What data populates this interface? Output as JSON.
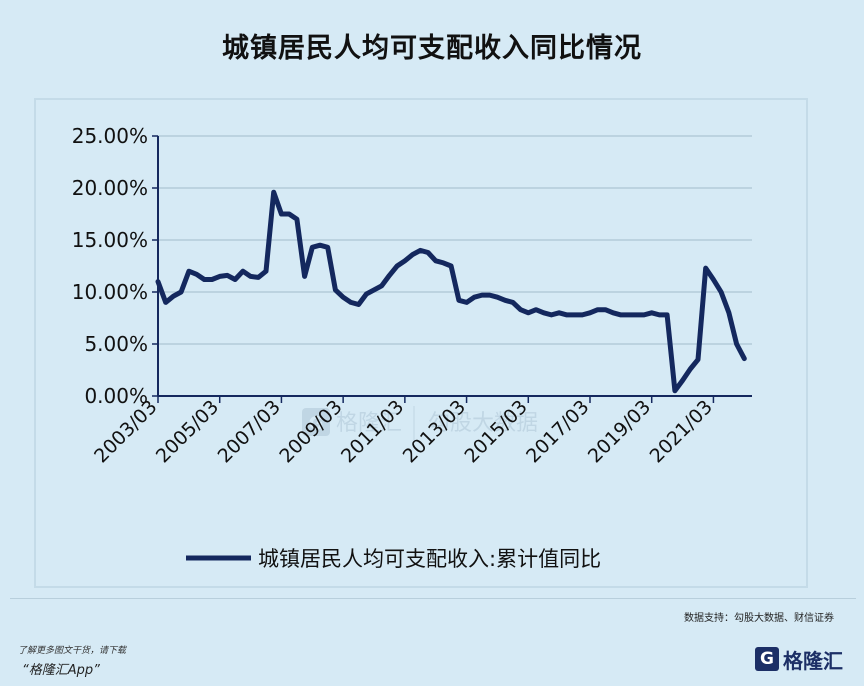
{
  "page": {
    "title": "城镇居民人均可支配收入同比情况",
    "source": "数据支持：勾股大数据、财信证券",
    "promo_line1": "了解更多图文干货，请下载",
    "promo_line2": "“格隆汇App”",
    "logo_mark": "G",
    "logo_text": "格隆汇",
    "watermark_left": "格隆汇",
    "watermark_right": "勾股大数据"
  },
  "colors": {
    "line": "#14285e",
    "grid": "#b3cbd9",
    "axis": "#14285e",
    "bg": "#d6eaf5"
  },
  "chart_data": {
    "type": "line",
    "title": "城镇居民人均可支配收入同比情况",
    "xlabel": "",
    "ylabel": "",
    "ylim": [
      0,
      25
    ],
    "yticks": [
      "0.00%",
      "5.00%",
      "10.00%",
      "15.00%",
      "20.00%",
      "25.00%"
    ],
    "xticks": [
      "2003/03",
      "2005/03",
      "2007/03",
      "2009/03",
      "2011/03",
      "2013/03",
      "2015/03",
      "2017/03",
      "2019/03",
      "2021/03"
    ],
    "grid": true,
    "legend_position": "bottom",
    "series": [
      {
        "name": "城镇居民人均可支配收入:累计值同比",
        "points": [
          [
            "2003/03",
            11.0
          ],
          [
            "2003/06",
            9.0
          ],
          [
            "2003/09",
            9.6
          ],
          [
            "2003/12",
            10.0
          ],
          [
            "2004/03",
            12.0
          ],
          [
            "2004/06",
            11.7
          ],
          [
            "2004/09",
            11.2
          ],
          [
            "2004/12",
            11.2
          ],
          [
            "2005/03",
            11.5
          ],
          [
            "2005/06",
            11.6
          ],
          [
            "2005/09",
            11.2
          ],
          [
            "2005/12",
            12.0
          ],
          [
            "2006/03",
            11.5
          ],
          [
            "2006/06",
            11.4
          ],
          [
            "2006/09",
            12.0
          ],
          [
            "2006/12",
            19.6
          ],
          [
            "2007/03",
            17.5
          ],
          [
            "2007/06",
            17.5
          ],
          [
            "2007/09",
            17.0
          ],
          [
            "2007/12",
            11.5
          ],
          [
            "2008/03",
            14.3
          ],
          [
            "2008/06",
            14.5
          ],
          [
            "2008/09",
            14.3
          ],
          [
            "2008/12",
            10.2
          ],
          [
            "2009/03",
            9.5
          ],
          [
            "2009/06",
            9.0
          ],
          [
            "2009/09",
            8.8
          ],
          [
            "2009/12",
            9.8
          ],
          [
            "2010/03",
            10.2
          ],
          [
            "2010/06",
            10.6
          ],
          [
            "2010/09",
            11.6
          ],
          [
            "2010/12",
            12.5
          ],
          [
            "2011/03",
            13.0
          ],
          [
            "2011/06",
            13.6
          ],
          [
            "2011/09",
            14.0
          ],
          [
            "2011/12",
            13.8
          ],
          [
            "2012/03",
            13.0
          ],
          [
            "2012/06",
            12.8
          ],
          [
            "2012/09",
            12.5
          ],
          [
            "2012/12",
            9.2
          ],
          [
            "2013/03",
            9.0
          ],
          [
            "2013/06",
            9.5
          ],
          [
            "2013/09",
            9.7
          ],
          [
            "2013/12",
            9.7
          ],
          [
            "2014/03",
            9.5
          ],
          [
            "2014/06",
            9.2
          ],
          [
            "2014/09",
            9.0
          ],
          [
            "2014/12",
            8.3
          ],
          [
            "2015/03",
            8.0
          ],
          [
            "2015/06",
            8.3
          ],
          [
            "2015/09",
            8.0
          ],
          [
            "2015/12",
            7.8
          ],
          [
            "2016/03",
            8.0
          ],
          [
            "2016/06",
            7.8
          ],
          [
            "2016/09",
            7.8
          ],
          [
            "2016/12",
            7.8
          ],
          [
            "2017/03",
            8.0
          ],
          [
            "2017/06",
            8.3
          ],
          [
            "2017/09",
            8.3
          ],
          [
            "2017/12",
            8.0
          ],
          [
            "2018/03",
            7.8
          ],
          [
            "2018/06",
            7.8
          ],
          [
            "2018/09",
            7.8
          ],
          [
            "2018/12",
            7.8
          ],
          [
            "2019/03",
            8.0
          ],
          [
            "2019/06",
            7.8
          ],
          [
            "2019/09",
            7.8
          ],
          [
            "2019/12",
            0.5
          ],
          [
            "2020/03",
            1.5
          ],
          [
            "2020/06",
            2.6
          ],
          [
            "2020/09",
            3.5
          ],
          [
            "2020/12",
            12.3
          ],
          [
            "2021/03",
            11.2
          ],
          [
            "2021/06",
            10.0
          ],
          [
            "2021/09",
            8.0
          ],
          [
            "2021/12",
            5.0
          ],
          [
            "2022/03",
            3.6
          ]
        ]
      }
    ]
  }
}
